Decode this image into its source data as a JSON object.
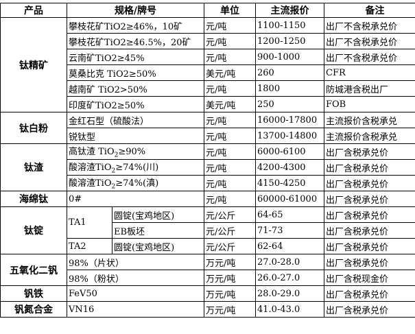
{
  "header": {
    "product": "产品",
    "spec": "规格/牌号",
    "unit": "单位",
    "price": "主流报价",
    "note": "备注"
  },
  "rows": [
    {
      "product": "钛精矿",
      "spec": "攀枝花矿TiO2≥46%，10矿",
      "unit": "元/吨",
      "price": "1100-1150",
      "note": "出厂不含税承兑价"
    },
    {
      "spec": "攀枝花矿TiO2≥46.5%，20矿",
      "unit": "元/吨",
      "price": "1200-1250",
      "note": "出厂不含税承兑价"
    },
    {
      "spec": "云南矿TiO2≥45%",
      "unit": "元/吨",
      "price": "900-1000",
      "note": "出厂不含税承兑价"
    },
    {
      "spec": "莫桑比克 TiO2≥50%",
      "unit": "美元/吨",
      "price": "260",
      "note": "CFR"
    },
    {
      "spec": "越南矿 TiO2>50%",
      "unit": "元/吨",
      "price": "1800",
      "note": "防城港含税出厂"
    },
    {
      "spec": "印度矿TiO2≥50%",
      "unit": "美元/吨",
      "price": "250",
      "note": "FOB"
    },
    {
      "product": "钛白粉",
      "spec": "金红石型（硫酸法）",
      "unit": "元/吨",
      "price": "16000-17800",
      "note": "主流报价含税承兑"
    },
    {
      "spec": "锐钛型",
      "unit": "元/吨",
      "price": "13700-14800",
      "note": "主流报价含税承兑"
    },
    {
      "product": "钛渣",
      "spec_pre": "高钛渣 TiO",
      "spec_sub": "2",
      "spec_post": "≥90%",
      "unit": "元/吨",
      "price": "6000-6100",
      "note": "出厂含税承兑价"
    },
    {
      "spec_pre": "酸溶渣TiO",
      "spec_sub": "2",
      "spec_post": "≥74%(川)",
      "unit": "元/吨",
      "price": "4200-4300",
      "note": "出厂含税承兑价"
    },
    {
      "spec_pre": "酸溶渣TiO",
      "spec_sub": "2",
      "spec_post": "≥74%(滇)",
      "unit": "元/吨",
      "price": "4150-4250",
      "note": "出厂含税承兑价"
    },
    {
      "product": "海绵钛",
      "spec": "0#",
      "unit": "元/吨",
      "price": "60000-61000",
      "note": "出厂含税承兑价"
    },
    {
      "product": "钛锭",
      "grade": "TA1",
      "spec": "圆锭(宝鸡地区)",
      "unit": "元/公斤",
      "price": "64-65",
      "note": "出厂含税承兑价"
    },
    {
      "spec": "EB板坯",
      "unit": "元/公斤",
      "price": "71-73",
      "note": "出厂含税承兑价"
    },
    {
      "grade": "TA2",
      "spec": "圆锭(宝鸡地区)",
      "unit": "元/公斤",
      "price": "62-64",
      "note": "出厂含税承兑价"
    },
    {
      "product": "五氧化二钒",
      "spec": "98%（片状）",
      "unit": "万元/吨",
      "price": "27.0-28.0",
      "note": "出厂含税承兑价"
    },
    {
      "spec": "98%（粉状）",
      "unit": "万元/吨",
      "price": "26.0-27.0",
      "note": "出厂含税现金价"
    },
    {
      "product": "钒铁",
      "spec": "FeV50",
      "unit": "万元/吨",
      "price": "28.0-29.0",
      "note": "出厂含税承兑价"
    },
    {
      "product": "钒氮合金",
      "spec": "VN16",
      "unit": "万元/吨",
      "price": "41.0-43.0",
      "note": "出厂含税承兑价"
    }
  ]
}
